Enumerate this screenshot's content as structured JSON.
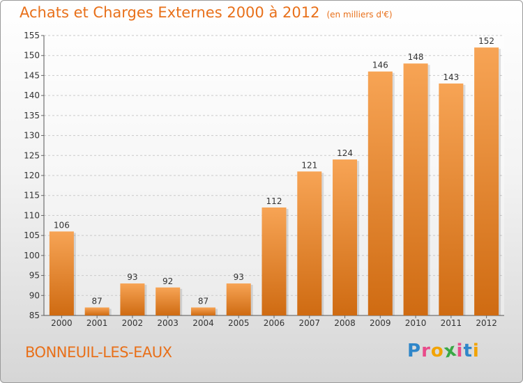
{
  "header": {
    "title": "Achats et Charges Externes 2000 à 2012",
    "unit": "(en milliers d'€)"
  },
  "footer": {
    "town": "BONNEUIL-LES-EAUX",
    "logo_letters": [
      "P",
      "r",
      "o",
      "x",
      "i",
      "t",
      "i"
    ],
    "logo_colors": [
      "#2f86c9",
      "#e94b8a",
      "#f2a300",
      "#3aa845",
      "#e94b8a",
      "#2f86c9",
      "#f2a300"
    ]
  },
  "chart_data": {
    "type": "bar",
    "title": "Achats et Charges Externes 2000 à 2012",
    "subtitle": "(en milliers d'€)",
    "categories": [
      "2000",
      "2001",
      "2002",
      "2003",
      "2004",
      "2005",
      "2006",
      "2007",
      "2008",
      "2009",
      "2010",
      "2011",
      "2012"
    ],
    "values": [
      106,
      87,
      93,
      92,
      87,
      93,
      112,
      121,
      124,
      146,
      148,
      143,
      152
    ],
    "ylim": [
      85,
      155
    ],
    "yticks": [
      85,
      90,
      95,
      100,
      105,
      110,
      115,
      120,
      125,
      130,
      135,
      140,
      145,
      150,
      155
    ],
    "grid": true,
    "bar_color_top": "#f7a455",
    "bar_color_bottom": "#cf6b12"
  }
}
